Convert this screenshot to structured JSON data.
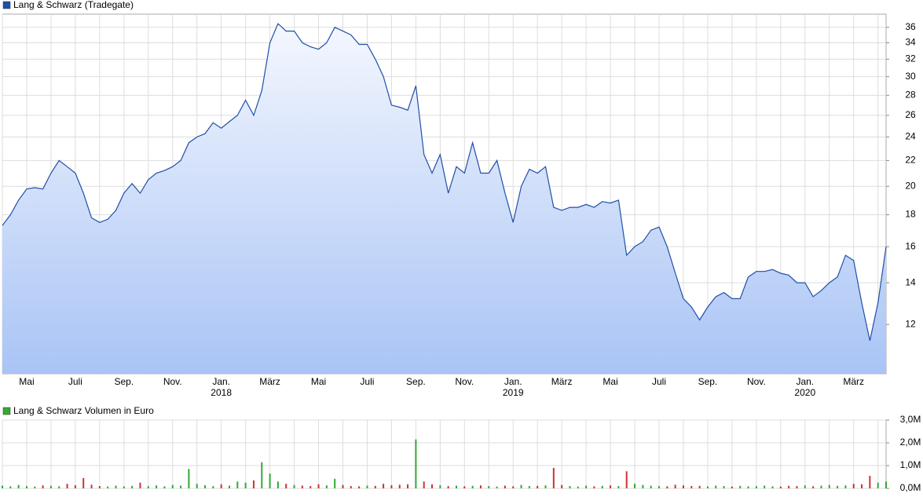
{
  "chart_data": [
    {
      "type": "line",
      "log_scale": true,
      "grid": true,
      "legend": "top-left",
      "categories": [
        null,
        null,
        null,
        "Mai",
        null,
        null,
        null,
        null,
        null,
        "Juli",
        null,
        null,
        null,
        null,
        null,
        "Sep.",
        null,
        null,
        null,
        null,
        null,
        "Nov.",
        null,
        null,
        null,
        null,
        null,
        "Jan.\n2018",
        null,
        null,
        null,
        null,
        null,
        "März",
        null,
        null,
        null,
        null,
        null,
        "Mai",
        null,
        null,
        null,
        null,
        null,
        "Juli",
        null,
        null,
        null,
        null,
        null,
        "Sep.",
        null,
        null,
        null,
        null,
        null,
        "Nov.",
        null,
        null,
        null,
        null,
        null,
        "Jan.\n2019",
        null,
        null,
        null,
        null,
        null,
        "März",
        null,
        null,
        null,
        null,
        null,
        "Mai",
        null,
        null,
        null,
        null,
        null,
        "Juli",
        null,
        null,
        null,
        null,
        null,
        "Sep.",
        null,
        null,
        null,
        null,
        null,
        "Nov.",
        null,
        null,
        null,
        null,
        null,
        "Jan.\n2020",
        null,
        null,
        null,
        null,
        null,
        "März",
        null,
        null,
        null,
        null
      ],
      "series": [
        {
          "name": "Lang & Schwarz (Tradegate)",
          "color": "#1f4fa8",
          "values": [
            17.3,
            18.0,
            19.0,
            19.8,
            19.9,
            19.8,
            21.0,
            22.0,
            21.5,
            21.0,
            19.5,
            17.8,
            17.5,
            17.7,
            18.3,
            19.5,
            20.2,
            19.5,
            20.5,
            21.0,
            21.2,
            21.5,
            22.0,
            23.5,
            24.0,
            24.3,
            25.3,
            24.8,
            25.4,
            26.0,
            27.5,
            26.0,
            28.5,
            34.0,
            36.5,
            35.5,
            35.5,
            34.0,
            33.5,
            33.2,
            34.0,
            36.0,
            35.5,
            35.0,
            33.8,
            33.8,
            32.0,
            30.0,
            27.0,
            26.8,
            26.5,
            29.0,
            22.5,
            21.0,
            22.5,
            19.5,
            21.5,
            21.0,
            23.5,
            21.0,
            21.0,
            22.0,
            19.5,
            17.5,
            20.0,
            21.3,
            21.0,
            21.5,
            18.5,
            18.3,
            18.5,
            18.5,
            18.7,
            18.5,
            18.9,
            18.8,
            19.0,
            15.5,
            16.0,
            16.3,
            17.0,
            17.2,
            16.0,
            14.5,
            13.2,
            12.8,
            12.2,
            12.8,
            13.3,
            13.5,
            13.2,
            13.2,
            14.3,
            14.6,
            14.6,
            14.7,
            14.5,
            14.4,
            14.0,
            14.0,
            13.3,
            13.6,
            14.0,
            14.3,
            15.5,
            15.2,
            13.0,
            11.3,
            13.0,
            16.0
          ]
        }
      ],
      "ylim": [
        10,
        37.8
      ],
      "yticks": [
        12,
        14,
        16,
        18,
        20,
        22,
        24,
        26,
        28,
        30,
        32,
        34,
        36
      ]
    },
    {
      "type": "bar",
      "grid": true,
      "legend": "top-left",
      "series": [
        {
          "name": "Lang & Schwarz Volumen in Euro",
          "color": "#33aa33",
          "down_color": "#cc3333",
          "values": [
            120000,
            90000,
            150000,
            100000,
            80000,
            130000,
            110000,
            90000,
            200000,
            140000,
            450000,
            160000,
            100000,
            80000,
            120000,
            90000,
            110000,
            250000,
            100000,
            130000,
            90000,
            150000,
            120000,
            850000,
            200000,
            140000,
            100000,
            180000,
            120000,
            300000,
            250000,
            350000,
            1150000,
            650000,
            300000,
            200000,
            150000,
            120000,
            100000,
            180000,
            130000,
            420000,
            150000,
            100000,
            90000,
            120000,
            110000,
            200000,
            140000,
            160000,
            180000,
            2150000,
            300000,
            180000,
            140000,
            100000,
            120000,
            90000,
            110000,
            130000,
            100000,
            80000,
            120000,
            90000,
            150000,
            100000,
            110000,
            130000,
            900000,
            150000,
            100000,
            80000,
            120000,
            90000,
            110000,
            130000,
            100000,
            750000,
            200000,
            150000,
            120000,
            100000,
            90000,
            160000,
            130000,
            100000,
            110000,
            90000,
            120000,
            100000,
            80000,
            110000,
            90000,
            100000,
            120000,
            90000,
            80000,
            110000,
            100000,
            130000,
            90000,
            120000,
            150000,
            110000,
            130000,
            200000,
            180000,
            550000,
            250000,
            300000
          ]
        }
      ],
      "ylim": [
        0,
        3000000
      ],
      "yticks": [
        {
          "value": 0,
          "label": "0,0M"
        },
        {
          "value": 1000000,
          "label": "1,0M"
        },
        {
          "value": 2000000,
          "label": "2,0M"
        },
        {
          "value": 3000000,
          "label": "3,0M"
        }
      ]
    }
  ]
}
